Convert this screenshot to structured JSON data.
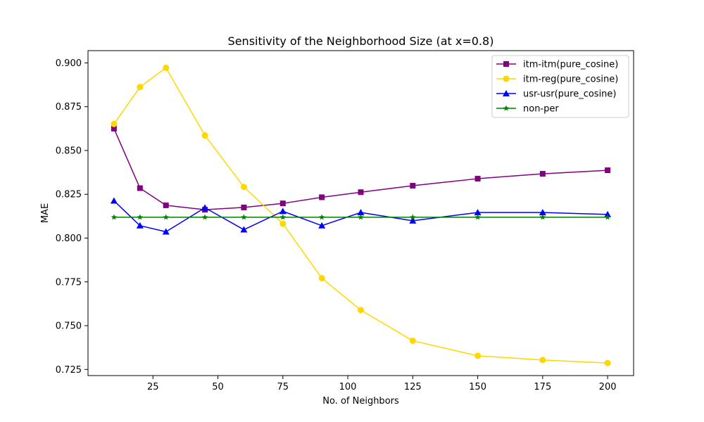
{
  "chart_data": {
    "type": "line",
    "title": "Sensitivity of the Neighborhood Size (at x=0.8)",
    "xlabel": "No. of Neighbors",
    "ylabel": "MAE",
    "xlim": [
      0,
      210
    ],
    "ylim": [
      0.7215,
      0.907
    ],
    "xticks": [
      25,
      50,
      75,
      100,
      125,
      150,
      175,
      200
    ],
    "yticks": [
      0.725,
      0.75,
      0.775,
      0.8,
      0.825,
      0.85,
      0.875,
      0.9
    ],
    "xtick_labels": [
      "25",
      "50",
      "75",
      "100",
      "125",
      "150",
      "175",
      "200"
    ],
    "ytick_labels": [
      "0.725",
      "0.750",
      "0.775",
      "0.800",
      "0.825",
      "0.850",
      "0.875",
      "0.900"
    ],
    "grid": false,
    "legend_position": "top-right",
    "x": [
      10,
      20,
      30,
      45,
      60,
      75,
      90,
      105,
      125,
      150,
      175,
      200
    ],
    "series": [
      {
        "name": "itm-itm(pure_cosine)",
        "color": "#800080",
        "marker": "square",
        "values": [
          0.8625,
          0.8285,
          0.8187,
          0.8162,
          0.8175,
          0.8198,
          0.8233,
          0.8262,
          0.8299,
          0.8339,
          0.8367,
          0.8387
        ]
      },
      {
        "name": "itm-reg(pure_cosine)",
        "color": "#FFD700",
        "marker": "circle",
        "values": [
          0.8651,
          0.8862,
          0.8972,
          0.8586,
          0.8292,
          0.8082,
          0.7771,
          0.7589,
          0.7414,
          0.7328,
          0.7304,
          0.7287
        ]
      },
      {
        "name": "usr-usr(pure_cosine)",
        "color": "#0000FF",
        "marker": "triangle",
        "values": [
          0.8213,
          0.8071,
          0.8036,
          0.8173,
          0.8048,
          0.8153,
          0.8071,
          0.8146,
          0.8099,
          0.8146,
          0.8146,
          0.8135
        ]
      },
      {
        "name": "non-per",
        "color": "#008000",
        "marker": "star",
        "values": [
          0.8119,
          0.8119,
          0.8119,
          0.8119,
          0.8119,
          0.8119,
          0.8119,
          0.8119,
          0.8119,
          0.8119,
          0.8119,
          0.8119
        ]
      }
    ]
  }
}
